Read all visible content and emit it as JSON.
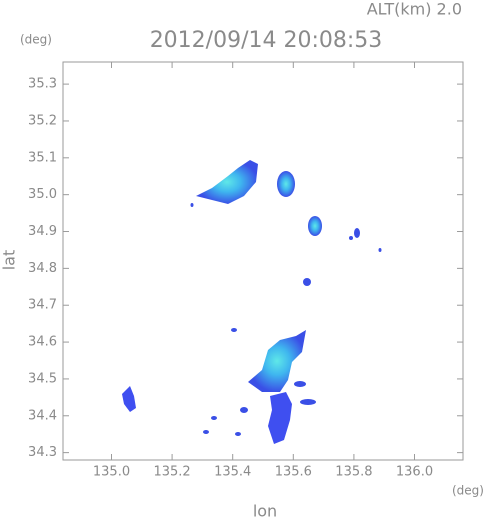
{
  "chart_data": {
    "type": "map",
    "title": "2012/09/14 20:08:53",
    "altitude_label": "ALT(km)  2.0",
    "y_unit": "(deg)",
    "x_unit": "(deg)",
    "xlabel": "lon",
    "ylabel": "lat",
    "xlim": [
      134.84,
      136.16
    ],
    "ylim": [
      34.28,
      35.36
    ],
    "xticks": [
      {
        "value": 135,
        "label": "135.0"
      },
      135.2,
      135.4,
      135.6,
      135.8,
      {
        "value": 136,
        "label": "136.0"
      }
    ],
    "yticks": [
      34.3,
      34.4,
      34.5,
      34.6,
      34.7,
      34.8,
      34.9,
      {
        "value": 35,
        "label": "35.0"
      },
      35.1,
      35.2,
      35.3
    ]
  }
}
